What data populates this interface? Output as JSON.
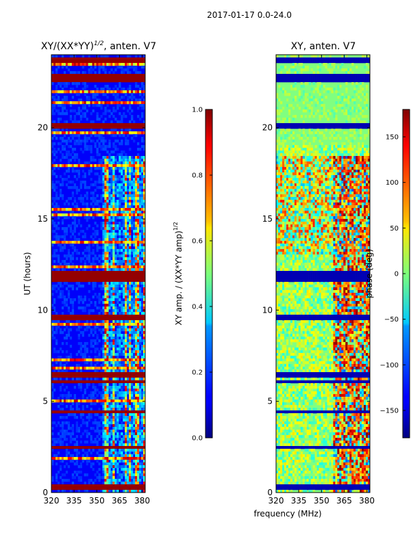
{
  "suptitle": "2017-01-17 0.0-24.0",
  "chart_data": [
    {
      "type": "heatmap",
      "title_prefix": "XY/(XX*YY)",
      "title_exp": "1/2",
      "title_suffix": ", anten. V7",
      "ylabel": "UT (hours)",
      "xlabel": "",
      "xlim": [
        320,
        382
      ],
      "ylim": [
        0,
        24
      ],
      "xticks": [
        320,
        335,
        350,
        365,
        380
      ],
      "yticks": [
        0,
        5,
        10,
        15,
        20
      ],
      "flagged_hours": [
        [
          0.1,
          0.5
        ],
        [
          2.4,
          2.5
        ],
        [
          4.3,
          4.5
        ],
        [
          6.0,
          6.1
        ],
        [
          6.3,
          6.6
        ],
        [
          9.5,
          9.7
        ],
        [
          11.5,
          11.8
        ],
        [
          11.9,
          12.2
        ],
        [
          19.9,
          20.3
        ],
        [
          22.5,
          23.0
        ],
        [
          23.5,
          23.8
        ]
      ],
      "high_amp_channels_mhz": [
        354,
        382
      ],
      "colorbar": {
        "label_prefix": "XY amp. / (XX*YY amp)",
        "label_exp": "1/2",
        "range": [
          0.0,
          1.0
        ],
        "ticks": [
          "0.0",
          "0.2",
          "0.4",
          "0.6",
          "0.8",
          "1.0"
        ]
      }
    },
    {
      "type": "heatmap",
      "title": "XY, anten. V7",
      "ylabel": "",
      "xlabel": "frequency (MHz)",
      "xlim": [
        320,
        382
      ],
      "ylim": [
        0,
        24
      ],
      "xticks": [
        320,
        335,
        350,
        365,
        380
      ],
      "yticks": [
        0,
        5,
        10,
        15,
        20
      ],
      "flagged_hours": [
        [
          0.1,
          0.5
        ],
        [
          2.4,
          2.5
        ],
        [
          4.3,
          4.5
        ],
        [
          6.0,
          6.1
        ],
        [
          6.3,
          6.6
        ],
        [
          9.5,
          9.7
        ],
        [
          11.5,
          11.8
        ],
        [
          11.9,
          12.2
        ],
        [
          19.9,
          20.3
        ],
        [
          22.5,
          23.0
        ],
        [
          23.5,
          23.8
        ]
      ],
      "colorbar": {
        "label": "phase (deg)",
        "range": [
          -180,
          180
        ],
        "ticks": [
          "150",
          "100",
          "50",
          "0",
          "−50",
          "−100",
          "−150"
        ],
        "tick_values": [
          150,
          100,
          50,
          0,
          -50,
          -100,
          -150
        ]
      }
    }
  ]
}
